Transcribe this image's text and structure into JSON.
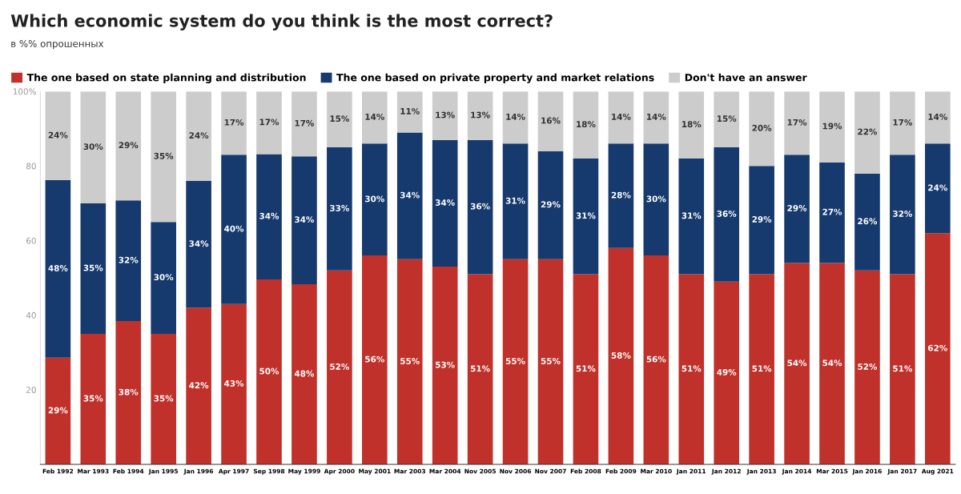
{
  "chart_data": {
    "type": "bar",
    "stacked": true,
    "title": "Which economic system do you think is the most correct?",
    "subtitle": "в %% опрошенных",
    "categories": [
      "Feb 1992",
      "Mar 1993",
      "Feb 1994",
      "Jan 1995",
      "Jan 1996",
      "Apr 1997",
      "Sep 1998",
      "May 1999",
      "Apr 2000",
      "May 2001",
      "Mar 2003",
      "Mar 2004",
      "Nov 2005",
      "Nov 2006",
      "Nov 2007",
      "Feb 2008",
      "Feb 2009",
      "Mar 2010",
      "Jan 2011",
      "Jan 2012",
      "Jan 2013",
      "Jan 2014",
      "Mar 2015",
      "Jan 2016",
      "Jan 2017",
      "Aug 2021"
    ],
    "series": [
      {
        "name": "The one based on state planning and distribution",
        "color": "#c0312b",
        "values": [
          28.6,
          35,
          38.4,
          35,
          42,
          43,
          49.6,
          48.3,
          52,
          56,
          55,
          53,
          51,
          55,
          55,
          51,
          58,
          56,
          51,
          49,
          51,
          54,
          54,
          52,
          51,
          62
        ],
        "value_labels": [
          "29%",
          "35%",
          "38%",
          "35%",
          "42%",
          "43%",
          "50%",
          "48%",
          "52%",
          "56%",
          "55%",
          "53%",
          "51%",
          "55%",
          "55%",
          "51%",
          "58%",
          "56%",
          "51%",
          "49%",
          "51%",
          "54%",
          "54%",
          "52%",
          "51%",
          "62%"
        ]
      },
      {
        "name": "The one based on private property and market relations",
        "color": "#173a6e",
        "values": [
          47.6,
          35,
          32.4,
          30,
          34,
          40,
          33.6,
          34.3,
          33,
          30,
          34,
          34,
          36,
          31,
          29,
          31,
          28,
          30,
          31,
          36,
          29,
          29,
          27,
          26,
          32,
          24
        ],
        "value_labels": [
          "48%",
          "35%",
          "32%",
          "30%",
          "34%",
          "40%",
          "34%",
          "34%",
          "33%",
          "30%",
          "34%",
          "34%",
          "36%",
          "31%",
          "29%",
          "31%",
          "28%",
          "30%",
          "31%",
          "36%",
          "29%",
          "29%",
          "27%",
          "26%",
          "32%",
          "24%"
        ]
      },
      {
        "name": "Don't have an answer",
        "color": "#cccccc",
        "values": [
          23.8,
          30,
          29.2,
          35,
          24,
          17,
          16.8,
          17.4,
          15,
          14,
          11,
          13,
          13,
          14,
          16,
          18,
          14,
          14,
          18,
          15,
          20,
          17,
          19,
          22,
          17,
          14
        ],
        "value_labels": [
          "24%",
          "30%",
          "29%",
          "35%",
          "24%",
          "17%",
          "17%",
          "17%",
          "15%",
          "14%",
          "11%",
          "13%",
          "13%",
          "14%",
          "16%",
          "18%",
          "14%",
          "14%",
          "18%",
          "15%",
          "20%",
          "17%",
          "19%",
          "22%",
          "17%",
          "14%"
        ]
      }
    ],
    "ylim": [
      0,
      100
    ],
    "yticks": [
      {
        "value": 20,
        "label": "20"
      },
      {
        "value": 40,
        "label": "40"
      },
      {
        "value": 60,
        "label": "60"
      },
      {
        "value": 80,
        "label": "80"
      },
      {
        "value": 100,
        "label": "100%"
      }
    ],
    "grid": false,
    "legend": "top left"
  }
}
